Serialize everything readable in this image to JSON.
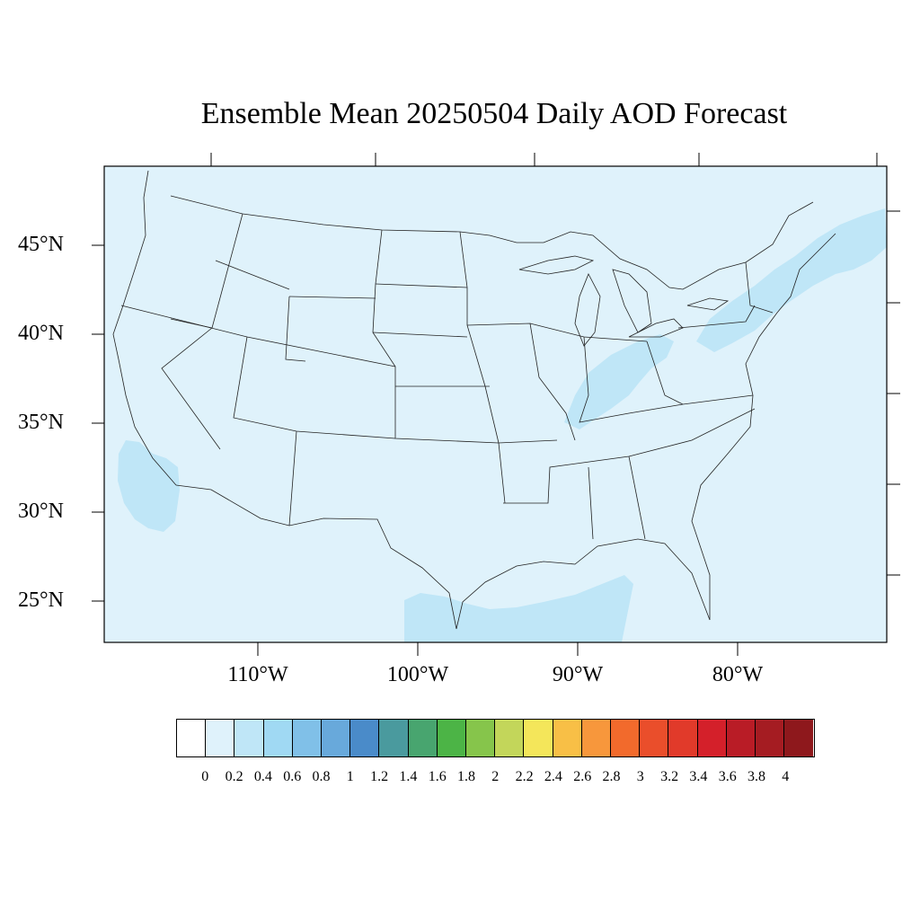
{
  "title": "Ensemble Mean 20250504 Daily AOD Forecast",
  "map": {
    "domain": "CONUS",
    "projection": "Lambert conformal",
    "background_level_color": "#dff2fb",
    "lat_labels": [
      "45°N",
      "40°N",
      "35°N",
      "30°N",
      "25°N"
    ],
    "lon_labels": [
      "110°W",
      "100°W",
      "90°W",
      "80°W"
    ],
    "aod_areas": [
      {
        "region": "Great Lakes / Ohio Valley band",
        "level": "0.2-0.4",
        "color": "#bfe6f7"
      },
      {
        "region": "Northeast / New England band",
        "level": "0.2-0.4",
        "color": "#bfe6f7"
      },
      {
        "region": "Southern California offshore",
        "level": "0.2-0.4",
        "color": "#bfe6f7"
      },
      {
        "region": "Western Gulf of Mexico",
        "level": "0.2-0.4",
        "color": "#bfe6f7"
      }
    ]
  },
  "colorbar": {
    "colors": [
      "#ffffff",
      "#dff2fb",
      "#bfe6f7",
      "#a0d9f3",
      "#80c0e8",
      "#68a9db",
      "#4a8bc9",
      "#4a9a9e",
      "#48a56f",
      "#4cb446",
      "#86c54b",
      "#c3d65a",
      "#f4e65a",
      "#f8bf46",
      "#f7973c",
      "#f26a2c",
      "#ea4e2b",
      "#e13a2a",
      "#d4202a",
      "#b91c26",
      "#a51c22",
      "#8e181c"
    ],
    "tick_labels": [
      "0",
      "0.2",
      "0.4",
      "0.6",
      "0.8",
      "1",
      "1.2",
      "1.4",
      "1.6",
      "1.8",
      "2",
      "2.2",
      "2.4",
      "2.6",
      "2.8",
      "3",
      "3.2",
      "3.4",
      "3.6",
      "3.8",
      "4"
    ]
  }
}
